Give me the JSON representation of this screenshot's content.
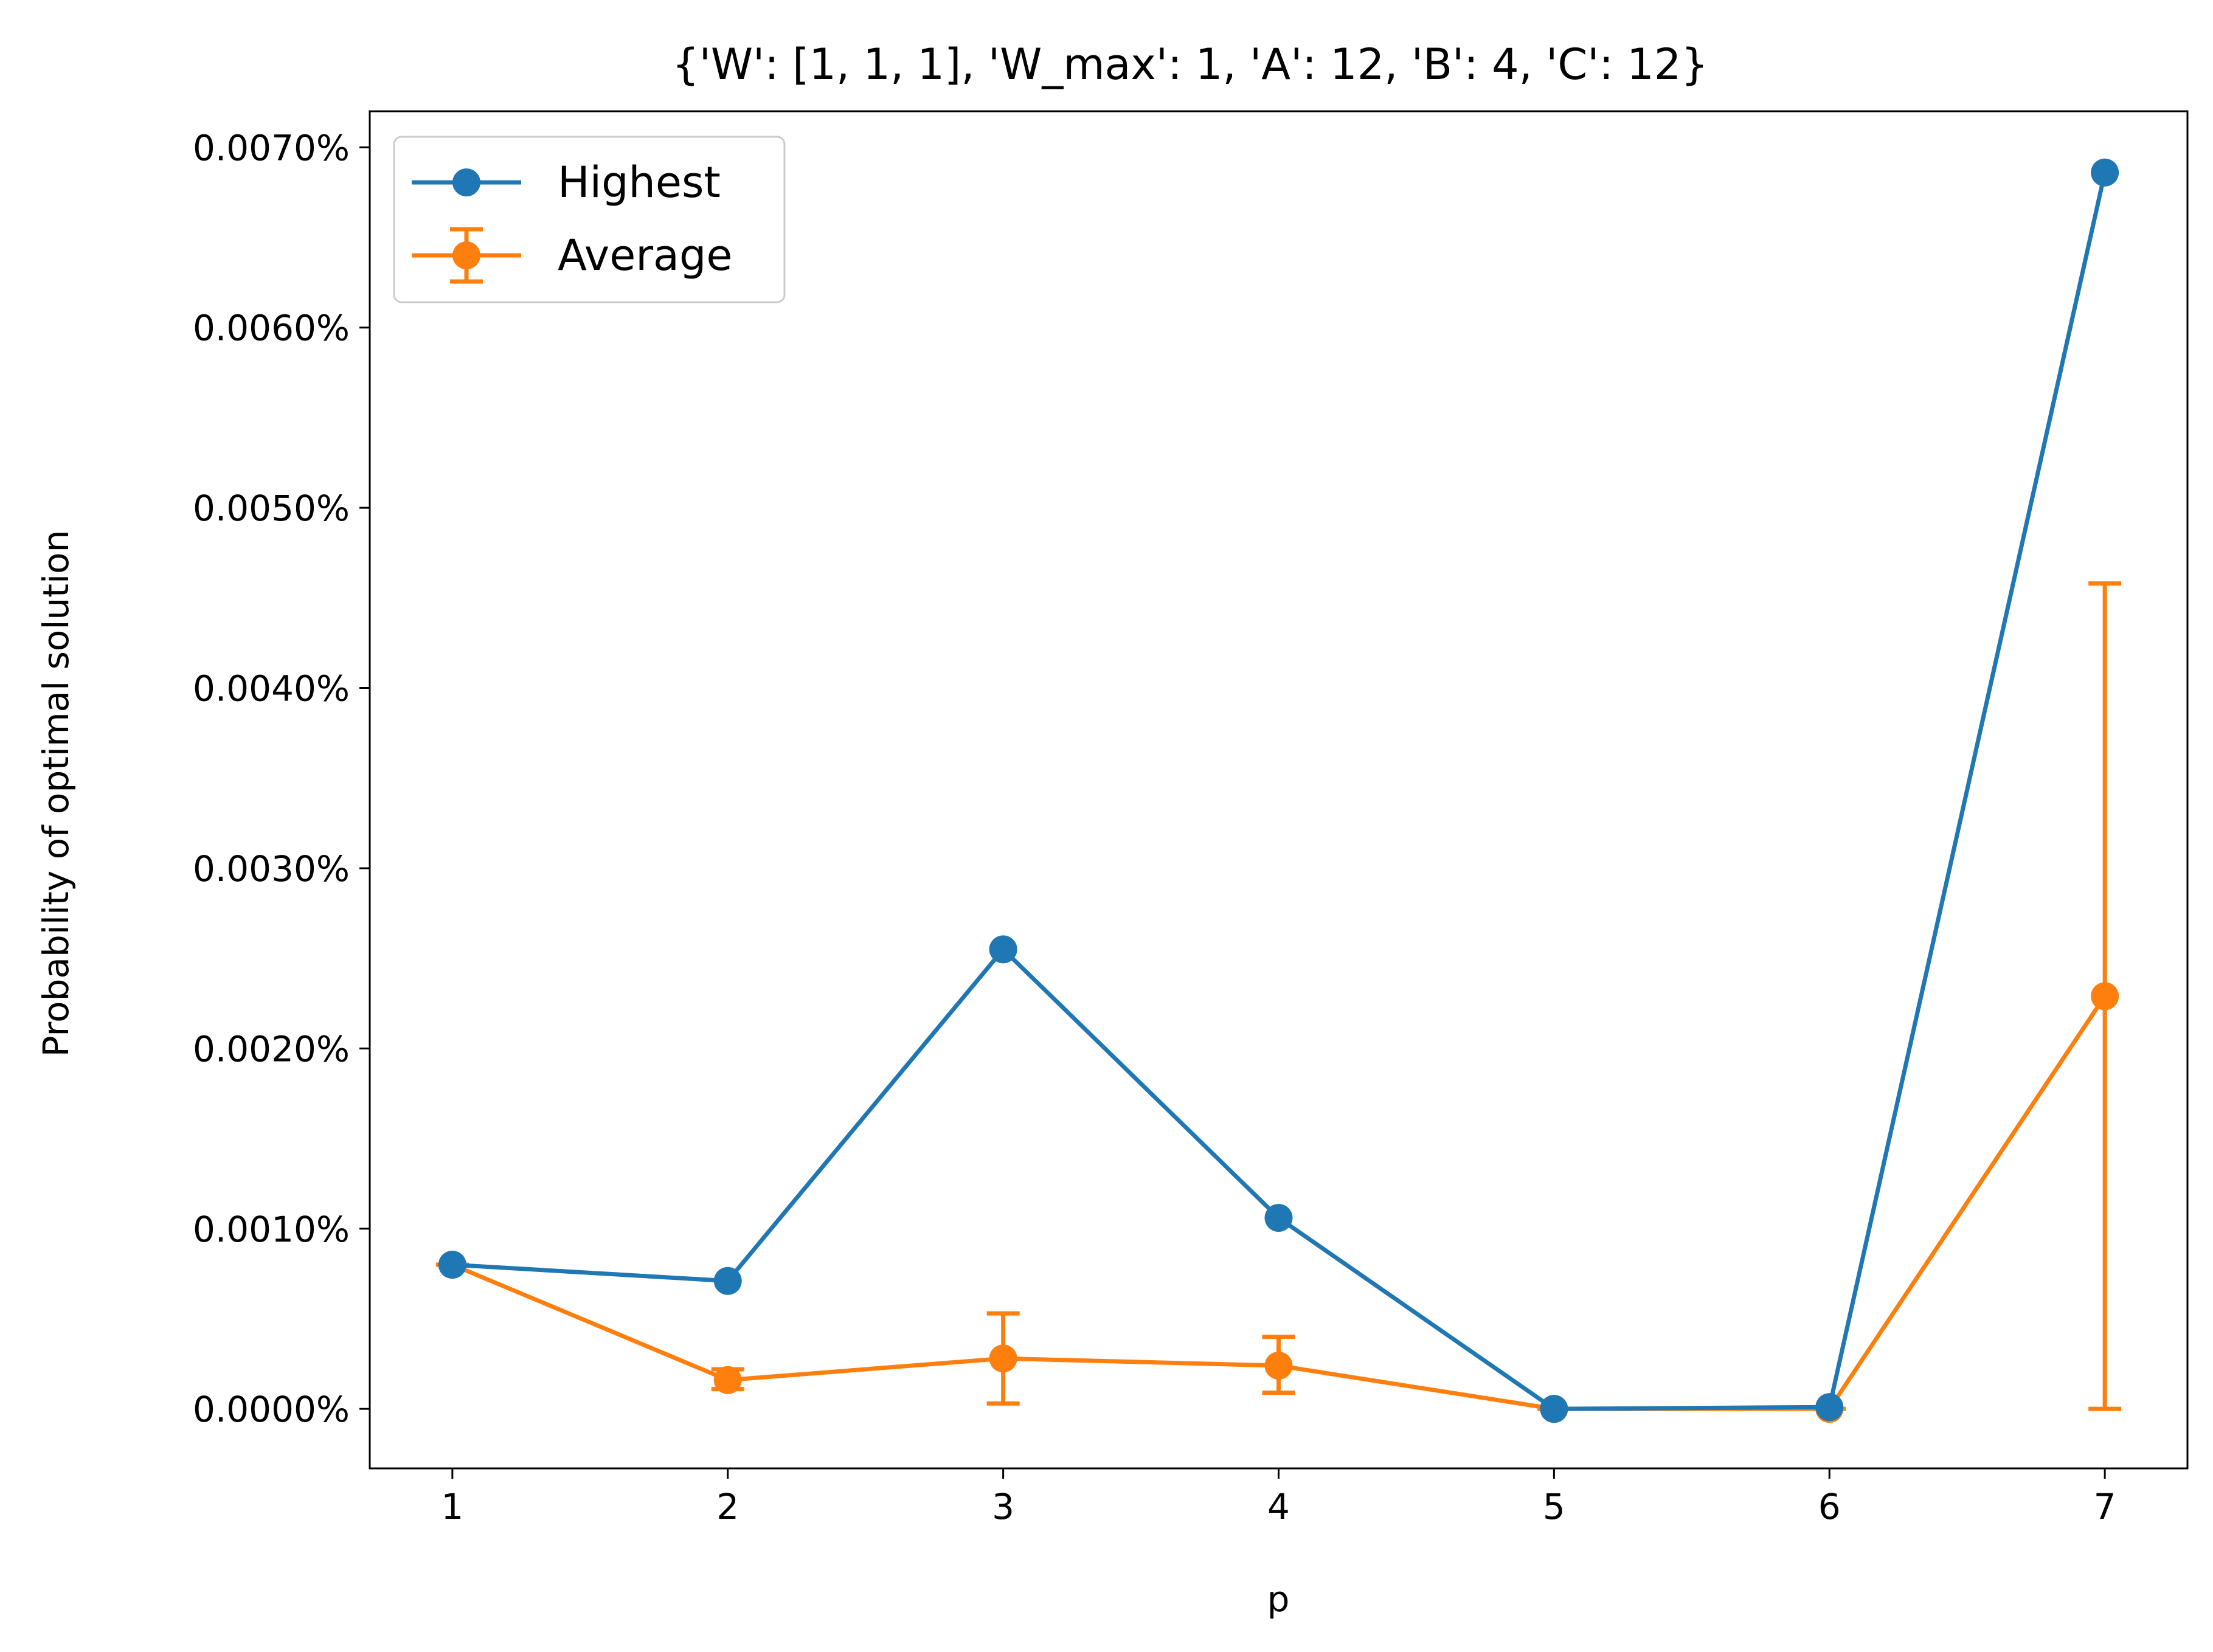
{
  "chart_data": {
    "type": "line",
    "title": "{'W': [1, 1, 1], 'W_max': 1, 'A': 12, 'B': 4, 'C': 12}",
    "xlabel": "p",
    "ylabel": "Probability of optimal solution",
    "x": [
      1,
      2,
      3,
      4,
      5,
      6,
      7
    ],
    "xlim": [
      0.7,
      7.3
    ],
    "ylim": [
      -0.00033,
      0.0072
    ],
    "x_ticks": [
      {
        "value": 1,
        "label": "1"
      },
      {
        "value": 2,
        "label": "2"
      },
      {
        "value": 3,
        "label": "3"
      },
      {
        "value": 4,
        "label": "4"
      },
      {
        "value": 5,
        "label": "5"
      },
      {
        "value": 6,
        "label": "6"
      },
      {
        "value": 7,
        "label": "7"
      }
    ],
    "y_ticks": [
      {
        "value": 0.0,
        "label": "0.0000%"
      },
      {
        "value": 0.001,
        "label": "0.0010%"
      },
      {
        "value": 0.002,
        "label": "0.0020%"
      },
      {
        "value": 0.003,
        "label": "0.0030%"
      },
      {
        "value": 0.004,
        "label": "0.0040%"
      },
      {
        "value": 0.005,
        "label": "0.0050%"
      },
      {
        "value": 0.006,
        "label": "0.0060%"
      },
      {
        "value": 0.007,
        "label": "0.0070%"
      }
    ],
    "grid": false,
    "legend_position": "top-left",
    "series": [
      {
        "name": "Highest",
        "color": "#1f77b4",
        "values": [
          0.0008,
          0.00071,
          0.00255,
          0.00106,
          0.0,
          1e-05,
          0.00686
        ]
      },
      {
        "name": "Average",
        "color": "#ff7f0e",
        "values": [
          0.0008,
          0.00016,
          0.00028,
          0.00024,
          0.0,
          0.0,
          0.00229
        ],
        "error_low": [
          0.0008,
          0.00011,
          3e-05,
          9e-05,
          0.0,
          0.0,
          0.0
        ],
        "error_high": [
          0.0008,
          0.00022,
          0.00053,
          0.0004,
          0.0,
          0.0,
          0.00458
        ]
      }
    ]
  }
}
